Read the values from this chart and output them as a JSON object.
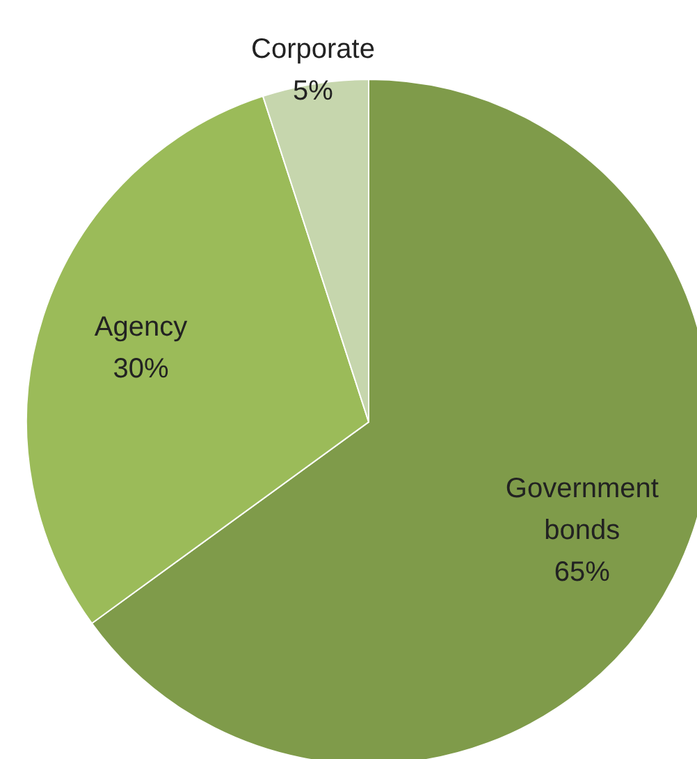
{
  "chart_data": {
    "type": "pie",
    "categories": [
      "Government bonds",
      "Agency",
      "Corporate"
    ],
    "values": [
      65,
      30,
      5
    ],
    "colors": [
      "#7f9b4a",
      "#9bbb59",
      "#c6d6ad"
    ],
    "value_labels": [
      "65%",
      "30%",
      "5%"
    ],
    "legend": false
  }
}
